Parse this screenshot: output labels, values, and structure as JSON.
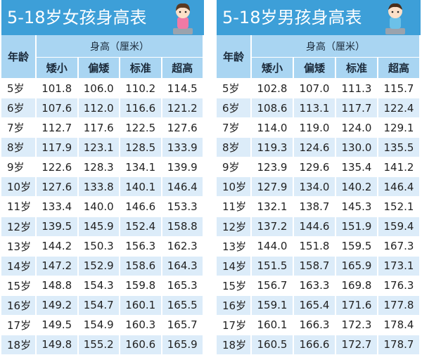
{
  "tables": [
    {
      "title": "5-18岁女孩身高表",
      "header": {
        "age": "年龄",
        "height": "身高（厘米）",
        "columns": [
          "矮小",
          "偏矮",
          "标准",
          "超高"
        ]
      },
      "rows": [
        [
          "5岁",
          "101.8",
          "106.0",
          "110.2",
          "114.5"
        ],
        [
          "6岁",
          "107.6",
          "112.0",
          "116.6",
          "121.2"
        ],
        [
          "7岁",
          "112.7",
          "117.6",
          "122.5",
          "127.6"
        ],
        [
          "8岁",
          "117.9",
          "123.1",
          "128.5",
          "133.9"
        ],
        [
          "9岁",
          "122.6",
          "128.3",
          "134.1",
          "139.9"
        ],
        [
          "10岁",
          "127.6",
          "133.8",
          "140.1",
          "146.4"
        ],
        [
          "11岁",
          "133.4",
          "140.0",
          "146.6",
          "153.3"
        ],
        [
          "12岁",
          "139.5",
          "145.9",
          "152.4",
          "158.8"
        ],
        [
          "13岁",
          "144.2",
          "150.3",
          "156.3",
          "162.3"
        ],
        [
          "14岁",
          "147.2",
          "152.9",
          "158.6",
          "164.3"
        ],
        [
          "15岁",
          "148.8",
          "154.3",
          "159.8",
          "165.3"
        ],
        [
          "16岁",
          "149.2",
          "154.7",
          "160.1",
          "165.5"
        ],
        [
          "17岁",
          "149.5",
          "154.9",
          "160.3",
          "165.7"
        ],
        [
          "18岁",
          "149.8",
          "155.2",
          "160.6",
          "165.9"
        ]
      ]
    },
    {
      "title": "5-18岁男孩身高表",
      "header": {
        "age": "年龄",
        "height": "身高（厘米）",
        "columns": [
          "矮小",
          "偏矮",
          "标准",
          "超高"
        ]
      },
      "rows": [
        [
          "5岁",
          "102.8",
          "107.0",
          "111.3",
          "115.7"
        ],
        [
          "6岁",
          "108.6",
          "113.1",
          "117.7",
          "122.4"
        ],
        [
          "7岁",
          "114.0",
          "119.0",
          "124.0",
          "129.1"
        ],
        [
          "8岁",
          "119.3",
          "124.6",
          "130.0",
          "135.5"
        ],
        [
          "9岁",
          "123.9",
          "129.6",
          "135.4",
          "141.2"
        ],
        [
          "10岁",
          "127.9",
          "134.0",
          "140.2",
          "146.4"
        ],
        [
          "11岁",
          "132.1",
          "138.7",
          "145.3",
          "152.1"
        ],
        [
          "12岁",
          "137.2",
          "144.6",
          "151.9",
          "159.4"
        ],
        [
          "13岁",
          "144.0",
          "151.8",
          "159.5",
          "167.3"
        ],
        [
          "14岁",
          "151.5",
          "158.7",
          "165.9",
          "173.1"
        ],
        [
          "15岁",
          "156.7",
          "163.3",
          "169.8",
          "176.3"
        ],
        [
          "16岁",
          "159.1",
          "165.4",
          "171.6",
          "177.8"
        ],
        [
          "17岁",
          "160.1",
          "166.3",
          "172.3",
          "178.4"
        ],
        [
          "18岁",
          "160.5",
          "166.6",
          "172.7",
          "178.7"
        ]
      ]
    }
  ]
}
